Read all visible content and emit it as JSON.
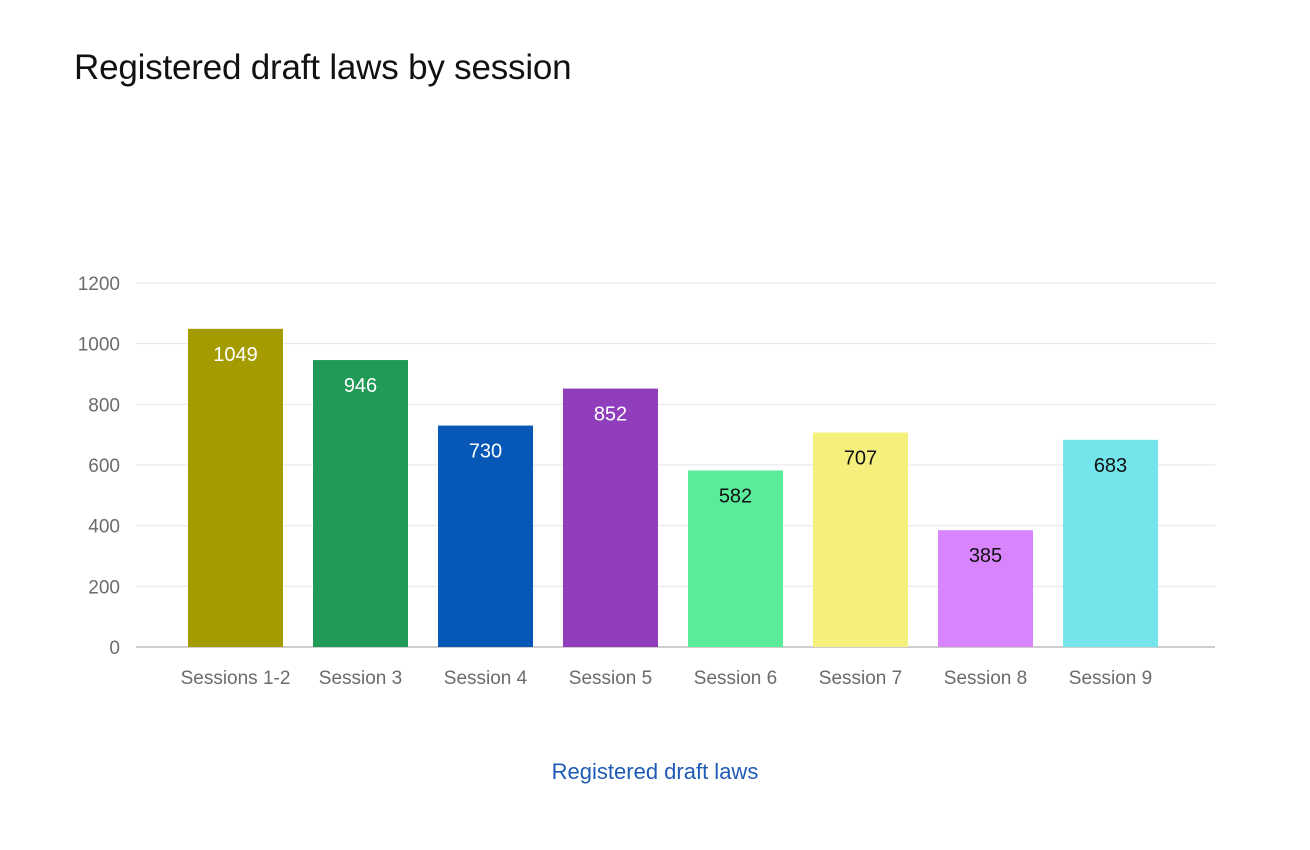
{
  "chart_data": {
    "type": "bar",
    "title": "Registered draft laws by session",
    "categories": [
      "Sessions 1-2",
      "Session 3",
      "Session 4",
      "Session 5",
      "Session 6",
      "Session 7",
      "Session 8",
      "Session 9"
    ],
    "series": [
      {
        "name": "Registered draft laws",
        "values": [
          1049,
          946,
          730,
          852,
          582,
          707,
          385,
          683
        ]
      }
    ],
    "bar_colors": [
      "#a39b00",
      "#229a57",
      "#0758b6",
      "#913ebc",
      "#5aeb9b",
      "#f4f07b",
      "#d884fc",
      "#73e5eb"
    ],
    "label_colors": [
      "#ffffff",
      "#ffffff",
      "#ffffff",
      "#ffffff",
      "#111111",
      "#111111",
      "#111111",
      "#111111"
    ],
    "ylim": [
      0,
      1200
    ],
    "yticks": [
      0,
      200,
      400,
      600,
      800,
      1000,
      1200
    ],
    "grid": true,
    "legend_position": "bottom",
    "legend_color": "#1f5bb5",
    "xlabel": "",
    "ylabel": ""
  }
}
